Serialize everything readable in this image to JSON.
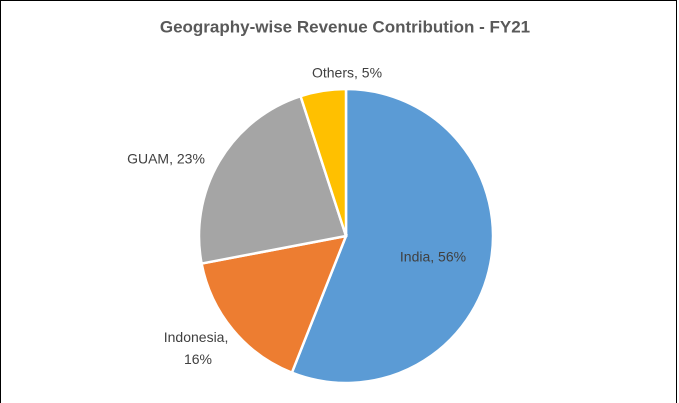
{
  "chart_data": {
    "type": "pie",
    "title": "Geography-wise Revenue Contribution - FY21",
    "categories": [
      "India",
      "Indonesia",
      "GUAM",
      "Others"
    ],
    "values": [
      56,
      16,
      23,
      5
    ],
    "value_labels": [
      "India, 56%",
      "Indonesia, 16%",
      "GUAM, 23%",
      "Others, 5%"
    ],
    "colors": [
      "#5b9bd5",
      "#ed7d31",
      "#a5a5a5",
      "#ffc000"
    ]
  }
}
